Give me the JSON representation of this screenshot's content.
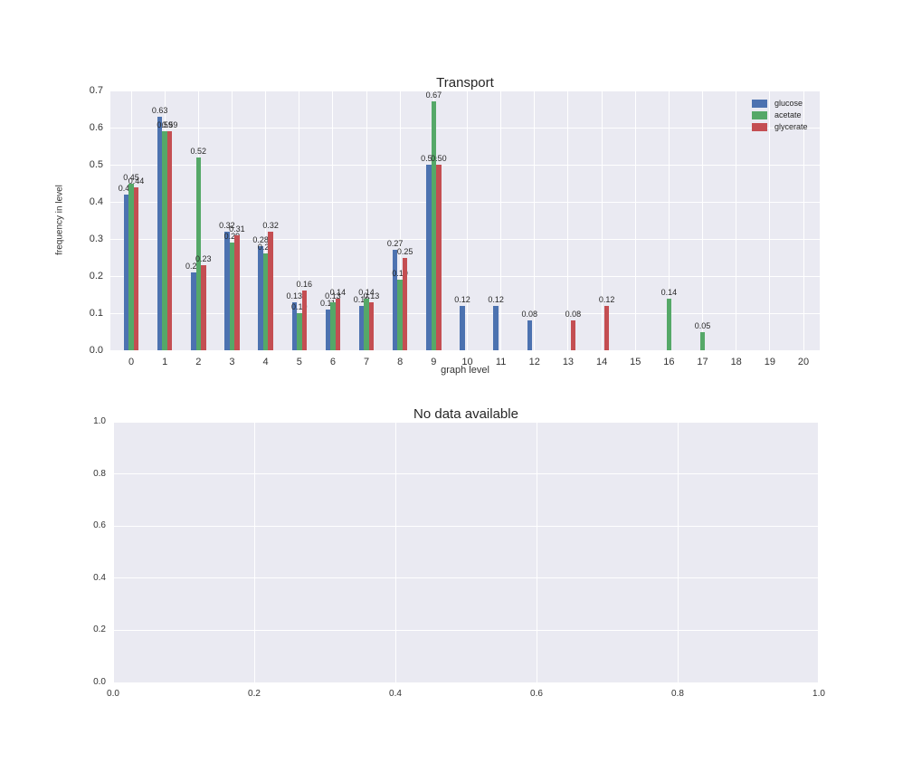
{
  "colors": {
    "figure_bg": "#ffffff",
    "axes_bg": "#EAEAF2",
    "grid": "#ffffff",
    "text": "#262626",
    "tick_text": "#333333"
  },
  "chart_data": [
    {
      "type": "bar",
      "title": "Transport",
      "xlabel": "graph level",
      "ylabel": "frequency in level",
      "categories": [
        0,
        1,
        2,
        3,
        4,
        5,
        6,
        7,
        8,
        9,
        10,
        11,
        12,
        13,
        14,
        15,
        16,
        17,
        18,
        19,
        20
      ],
      "series": [
        {
          "name": "glucose",
          "color": "#4C72B0",
          "values": [
            0.42,
            0.63,
            0.21,
            0.32,
            0.28,
            0.13,
            0.11,
            0.12,
            0.27,
            0.5,
            0.12,
            0.12,
            0.08,
            null,
            null,
            null,
            null,
            null,
            null,
            null,
            null
          ]
        },
        {
          "name": "acetate",
          "color": "#55A868",
          "values": [
            0.45,
            0.59,
            0.52,
            0.29,
            0.26,
            0.1,
            0.13,
            0.14,
            0.19,
            0.67,
            null,
            null,
            null,
            null,
            null,
            null,
            0.14,
            0.05,
            null,
            null,
            null
          ]
        },
        {
          "name": "glycerate",
          "color": "#C44E52",
          "values": [
            0.44,
            0.59,
            0.23,
            0.31,
            0.32,
            0.16,
            0.14,
            0.13,
            0.25,
            0.5,
            null,
            null,
            null,
            0.08,
            0.12,
            null,
            null,
            null,
            null,
            null,
            null
          ]
        }
      ],
      "ylim": [
        0.0,
        0.7
      ],
      "yticks": [
        "0.0",
        "0.1",
        "0.2",
        "0.3",
        "0.4",
        "0.5",
        "0.6",
        "0.7"
      ],
      "xticks": [
        "0",
        "1",
        "2",
        "3",
        "4",
        "5",
        "6",
        "7",
        "8",
        "9",
        "10",
        "11",
        "12",
        "13",
        "14",
        "15",
        "16",
        "17",
        "18",
        "19",
        "20"
      ],
      "grid": true,
      "legend_position": "upper right",
      "bar_labels": "two-decimal values above each bar"
    },
    {
      "type": "empty",
      "title": "No data available",
      "xlabel": "",
      "ylabel": "",
      "xlim": [
        0.0,
        1.0
      ],
      "ylim": [
        0.0,
        1.0
      ],
      "xticks": [
        "0.0",
        "0.2",
        "0.4",
        "0.6",
        "0.8",
        "1.0"
      ],
      "yticks": [
        "0.0",
        "0.2",
        "0.4",
        "0.6",
        "0.8",
        "1.0"
      ],
      "grid": true
    }
  ]
}
